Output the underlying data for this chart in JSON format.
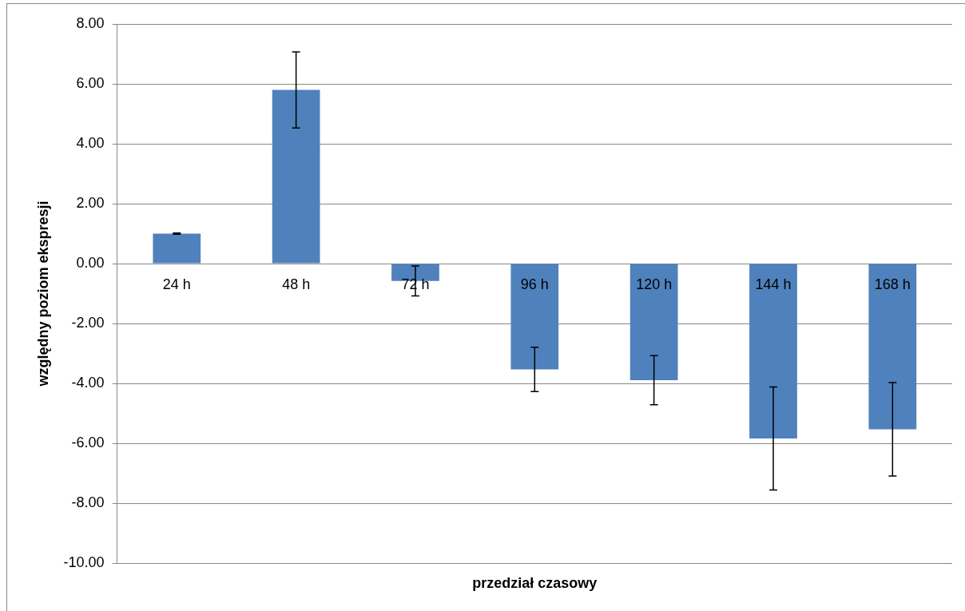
{
  "chart_data": {
    "type": "bar",
    "xlabel": "przedział czasowy",
    "ylabel": "względny poziom ekspresji",
    "categories": [
      "24 h",
      "48 h",
      "72 h",
      "96 h",
      "120 h",
      "144 h",
      "168 h"
    ],
    "values": [
      1.0,
      5.8,
      -0.58,
      -3.53,
      -3.89,
      -5.84,
      -5.53
    ],
    "errors": [
      0.02,
      1.27,
      0.5,
      0.74,
      0.82,
      1.72,
      1.56
    ],
    "color": "#4f81bd",
    "ylim": [
      -10,
      8
    ],
    "yticks": [
      {
        "value": -10,
        "label": "-10.00"
      },
      {
        "value": -8,
        "label": "-8.00"
      },
      {
        "value": -6,
        "label": "-6.00"
      },
      {
        "value": -4,
        "label": "-4.00"
      },
      {
        "value": -2,
        "label": "-2.00"
      },
      {
        "value": 0,
        "label": "0.00"
      },
      {
        "value": 2,
        "label": "2.00"
      },
      {
        "value": 4,
        "label": "4.00"
      },
      {
        "value": 6,
        "label": "6.00"
      },
      {
        "value": 8,
        "label": "8.00"
      }
    ],
    "grid": "y"
  }
}
